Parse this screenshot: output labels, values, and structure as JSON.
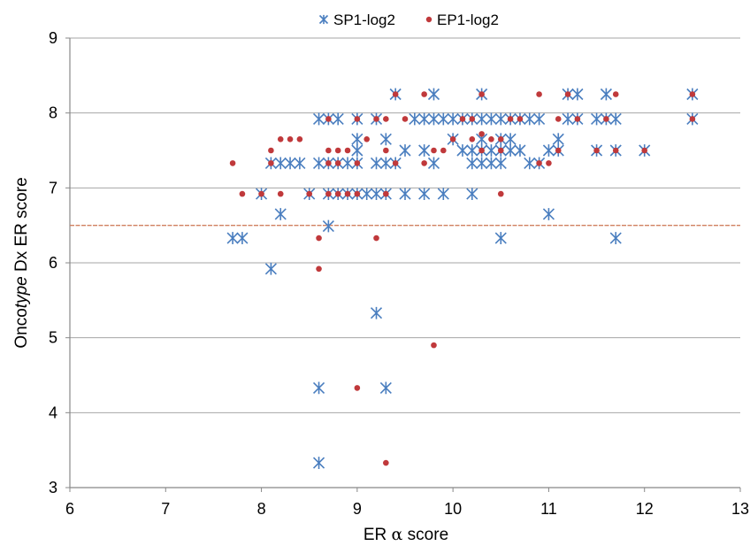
{
  "chart_data": {
    "type": "scatter",
    "xlabel_prefix": "ER ",
    "xlabel_greek": "α",
    "xlabel_suffix": " score",
    "ylabel_prefix": "Onco",
    "ylabel_italic": "type",
    "ylabel_suffix": " Dx ER score",
    "xlim": [
      6,
      13
    ],
    "ylim": [
      3,
      9
    ],
    "x_ticks": [
      "6",
      "7",
      "8",
      "9",
      "10",
      "11",
      "12",
      "13"
    ],
    "y_ticks": [
      "3",
      "4",
      "5",
      "6",
      "7",
      "8",
      "9"
    ],
    "grid": "horizontal",
    "legend_position": "top",
    "reference_line_y": 6.5,
    "colors": {
      "SP1-log2": "#4a7ebf",
      "EP1-log2": "#c0393b",
      "reference": "#d08060",
      "grid": "#a6a6a6"
    },
    "series": [
      {
        "name": "SP1-log2",
        "marker": "asterisk",
        "points": [
          [
            7.7,
            6.33
          ],
          [
            7.8,
            6.33
          ],
          [
            8.0,
            6.92
          ],
          [
            8.1,
            5.92
          ],
          [
            8.1,
            7.33
          ],
          [
            8.2,
            6.65
          ],
          [
            8.2,
            7.33
          ],
          [
            8.3,
            7.33
          ],
          [
            8.4,
            7.33
          ],
          [
            8.5,
            6.92
          ],
          [
            8.6,
            7.33
          ],
          [
            8.6,
            7.92
          ],
          [
            8.6,
            4.33
          ],
          [
            8.6,
            3.33
          ],
          [
            8.7,
            6.49
          ],
          [
            8.7,
            6.92
          ],
          [
            8.7,
            7.33
          ],
          [
            8.7,
            7.92
          ],
          [
            8.8,
            6.92
          ],
          [
            8.8,
            7.33
          ],
          [
            8.8,
            7.92
          ],
          [
            8.9,
            6.92
          ],
          [
            8.9,
            7.33
          ],
          [
            9.0,
            6.92
          ],
          [
            9.0,
            7.33
          ],
          [
            9.0,
            7.5
          ],
          [
            9.0,
            7.65
          ],
          [
            9.0,
            7.92
          ],
          [
            9.1,
            6.92
          ],
          [
            9.2,
            6.92
          ],
          [
            9.2,
            7.33
          ],
          [
            9.2,
            7.92
          ],
          [
            9.2,
            5.33
          ],
          [
            9.3,
            6.92
          ],
          [
            9.3,
            7.33
          ],
          [
            9.3,
            7.65
          ],
          [
            9.3,
            4.33
          ],
          [
            9.4,
            7.33
          ],
          [
            9.4,
            8.25
          ],
          [
            9.5,
            6.92
          ],
          [
            9.5,
            7.5
          ],
          [
            9.6,
            7.92
          ],
          [
            9.7,
            6.92
          ],
          [
            9.7,
            7.5
          ],
          [
            9.7,
            7.92
          ],
          [
            9.8,
            7.33
          ],
          [
            9.8,
            7.92
          ],
          [
            9.8,
            8.25
          ],
          [
            9.9,
            6.92
          ],
          [
            9.9,
            7.92
          ],
          [
            10.0,
            7.65
          ],
          [
            10.0,
            7.92
          ],
          [
            10.1,
            7.5
          ],
          [
            10.1,
            7.92
          ],
          [
            10.2,
            6.92
          ],
          [
            10.2,
            7.33
          ],
          [
            10.2,
            7.5
          ],
          [
            10.2,
            7.92
          ],
          [
            10.3,
            7.33
          ],
          [
            10.3,
            7.5
          ],
          [
            10.3,
            7.65
          ],
          [
            10.3,
            7.92
          ],
          [
            10.3,
            8.25
          ],
          [
            10.4,
            7.33
          ],
          [
            10.4,
            7.5
          ],
          [
            10.4,
            7.92
          ],
          [
            10.5,
            6.33
          ],
          [
            10.5,
            7.33
          ],
          [
            10.5,
            7.5
          ],
          [
            10.5,
            7.65
          ],
          [
            10.5,
            7.92
          ],
          [
            10.6,
            7.5
          ],
          [
            10.6,
            7.65
          ],
          [
            10.6,
            7.92
          ],
          [
            10.7,
            7.5
          ],
          [
            10.7,
            7.92
          ],
          [
            10.8,
            7.33
          ],
          [
            10.8,
            7.92
          ],
          [
            10.9,
            7.33
          ],
          [
            10.9,
            7.92
          ],
          [
            11.0,
            6.65
          ],
          [
            11.0,
            7.5
          ],
          [
            11.1,
            7.5
          ],
          [
            11.1,
            7.65
          ],
          [
            11.2,
            7.92
          ],
          [
            11.2,
            8.25
          ],
          [
            11.3,
            7.92
          ],
          [
            11.3,
            8.25
          ],
          [
            11.5,
            7.5
          ],
          [
            11.5,
            7.92
          ],
          [
            11.6,
            7.92
          ],
          [
            11.6,
            8.25
          ],
          [
            11.7,
            6.33
          ],
          [
            11.7,
            7.5
          ],
          [
            11.7,
            7.92
          ],
          [
            12.0,
            7.5
          ],
          [
            12.5,
            7.92
          ],
          [
            12.5,
            8.25
          ]
        ]
      },
      {
        "name": "EP1-log2",
        "marker": "dot",
        "points": [
          [
            7.7,
            7.33
          ],
          [
            7.8,
            6.92
          ],
          [
            8.0,
            6.92
          ],
          [
            8.1,
            7.33
          ],
          [
            8.1,
            7.5
          ],
          [
            8.2,
            6.92
          ],
          [
            8.2,
            7.65
          ],
          [
            8.3,
            7.65
          ],
          [
            8.4,
            7.65
          ],
          [
            8.5,
            6.92
          ],
          [
            8.6,
            6.33
          ],
          [
            8.6,
            5.92
          ],
          [
            8.7,
            6.92
          ],
          [
            8.7,
            7.33
          ],
          [
            8.7,
            7.5
          ],
          [
            8.7,
            7.92
          ],
          [
            8.8,
            6.92
          ],
          [
            8.8,
            7.33
          ],
          [
            8.8,
            7.5
          ],
          [
            8.9,
            6.92
          ],
          [
            8.9,
            7.5
          ],
          [
            9.0,
            6.92
          ],
          [
            9.0,
            7.33
          ],
          [
            9.0,
            7.92
          ],
          [
            9.0,
            4.33
          ],
          [
            9.1,
            7.65
          ],
          [
            9.2,
            6.33
          ],
          [
            9.2,
            7.92
          ],
          [
            9.3,
            6.92
          ],
          [
            9.3,
            7.5
          ],
          [
            9.3,
            7.92
          ],
          [
            9.3,
            3.33
          ],
          [
            9.4,
            7.33
          ],
          [
            9.4,
            8.25
          ],
          [
            9.5,
            7.92
          ],
          [
            9.7,
            7.33
          ],
          [
            9.7,
            8.25
          ],
          [
            9.8,
            7.5
          ],
          [
            9.8,
            4.9
          ],
          [
            9.9,
            7.5
          ],
          [
            10.0,
            7.65
          ],
          [
            10.1,
            7.92
          ],
          [
            10.2,
            7.65
          ],
          [
            10.2,
            7.92
          ],
          [
            10.3,
            7.5
          ],
          [
            10.3,
            7.72
          ],
          [
            10.3,
            8.25
          ],
          [
            10.4,
            7.65
          ],
          [
            10.5,
            6.92
          ],
          [
            10.5,
            7.5
          ],
          [
            10.5,
            7.65
          ],
          [
            10.6,
            7.92
          ],
          [
            10.7,
            7.92
          ],
          [
            10.9,
            7.33
          ],
          [
            10.9,
            8.25
          ],
          [
            11.0,
            7.33
          ],
          [
            11.1,
            7.5
          ],
          [
            11.1,
            7.92
          ],
          [
            11.2,
            8.25
          ],
          [
            11.3,
            7.92
          ],
          [
            11.5,
            7.5
          ],
          [
            11.6,
            7.92
          ],
          [
            11.7,
            7.5
          ],
          [
            11.7,
            8.25
          ],
          [
            12.0,
            7.5
          ],
          [
            12.5,
            7.92
          ],
          [
            12.5,
            8.25
          ]
        ]
      }
    ]
  }
}
